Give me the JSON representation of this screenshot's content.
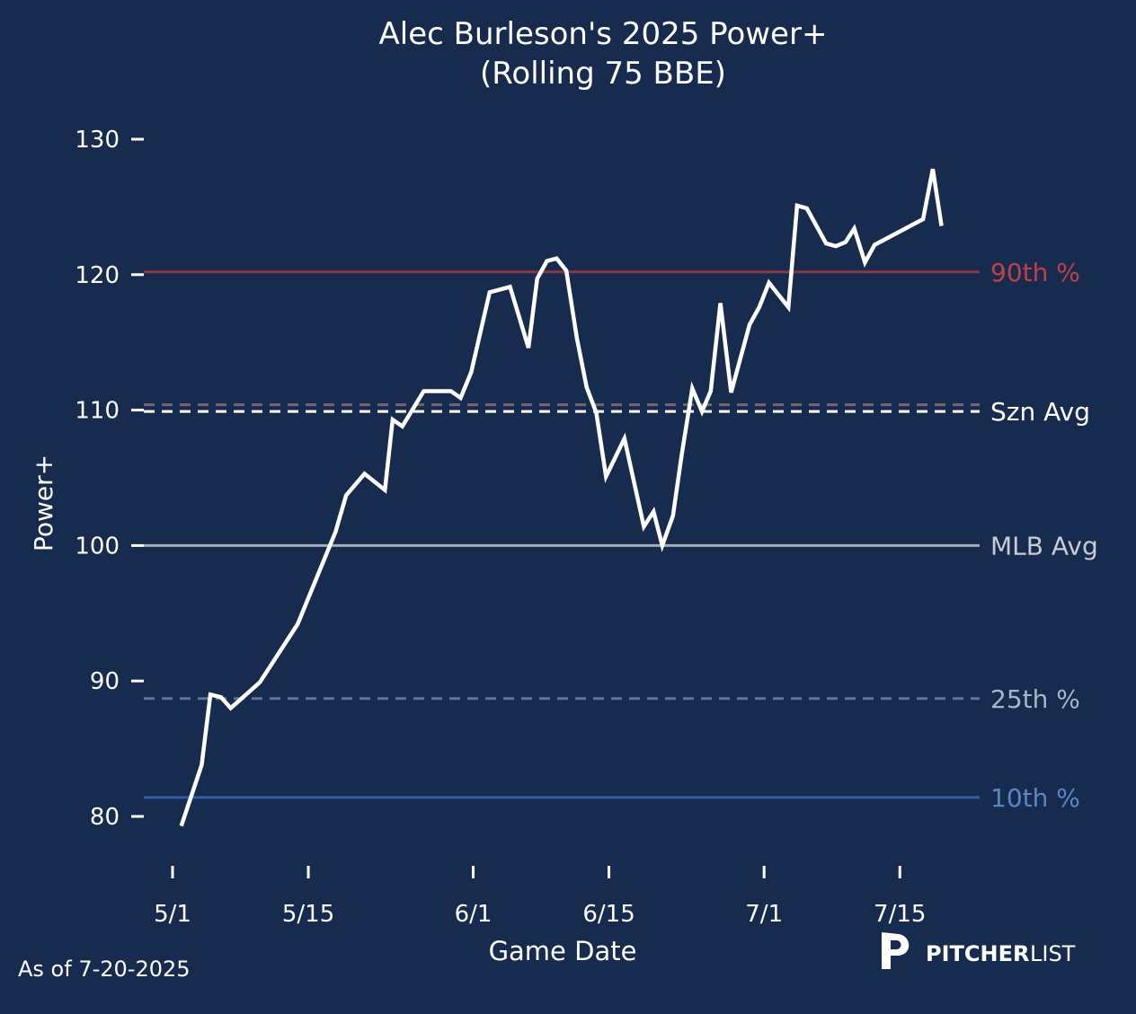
{
  "chart_data": {
    "type": "line",
    "title": "Alec Burleson's 2025 Power+",
    "subtitle": "(Rolling 75 BBE)",
    "xlabel": "Game Date",
    "ylabel": "Power+",
    "x_units": "days since 5/1",
    "xlim": [
      -3,
      83.2
    ],
    "ylim": [
      76.5,
      132
    ],
    "grid": false,
    "y_ticks": [
      80,
      90,
      100,
      110,
      120,
      130
    ],
    "x_ticks": [
      {
        "value": 0,
        "label": "5/1"
      },
      {
        "value": 14,
        "label": "5/15"
      },
      {
        "value": 31,
        "label": "6/1"
      },
      {
        "value": 45,
        "label": "6/15"
      },
      {
        "value": 61,
        "label": "7/1"
      },
      {
        "value": 75,
        "label": "7/15"
      }
    ],
    "series": [
      {
        "name": "Power+",
        "color": "#ffffff",
        "x": [
          0.9,
          3.0,
          3.9,
          5.0,
          6.0,
          9.0,
          12.9,
          16.8,
          17.9,
          19.8,
          21.9,
          22.7,
          23.7,
          25.9,
          28.7,
          29.7,
          30.8,
          32.7,
          34.8,
          36.7,
          37.6,
          38.6,
          39.6,
          40.6,
          41.7,
          42.7,
          43.7,
          44.7,
          46.6,
          48.6,
          49.6,
          50.5,
          51.6,
          52.5,
          53.6,
          54.6,
          55.5,
          56.5,
          57.6,
          59.5,
          60.5,
          61.5,
          63.5,
          64.4,
          65.4,
          67.4,
          68.4,
          69.4,
          70.3,
          71.4,
          72.4,
          77.4,
          78.4,
          79.3
        ],
        "y": [
          79.3,
          83.8,
          89.0,
          88.8,
          88.0,
          89.9,
          94.2,
          101.0,
          103.7,
          105.3,
          104.1,
          109.3,
          108.8,
          111.4,
          111.4,
          110.9,
          112.8,
          118.7,
          119.1,
          114.6,
          119.7,
          121.0,
          121.2,
          120.3,
          115.3,
          111.7,
          109.8,
          105.1,
          107.9,
          101.4,
          102.5,
          100.0,
          102.2,
          106.7,
          111.6,
          109.9,
          111.4,
          117.9,
          111.3,
          116.3,
          117.6,
          119.4,
          117.6,
          125.1,
          124.9,
          122.3,
          122.1,
          122.4,
          123.4,
          120.9,
          122.2,
          124.1,
          127.8,
          123.6
        ]
      }
    ],
    "reference_lines": [
      {
        "name": "90th %",
        "label": "90th %",
        "value": 120.2,
        "style": "solid",
        "color": "#8a3745",
        "text_color": "#c0404a"
      },
      {
        "name": "75th",
        "label": "",
        "value": 110.4,
        "style": "dashed",
        "color": "#7a6070",
        "text_color": ""
      },
      {
        "name": "Szn Avg",
        "label": "Szn Avg",
        "value": 109.9,
        "style": "dashed",
        "color": "#ffffff",
        "text_color": "#ffffff"
      },
      {
        "name": "MLB Avg",
        "label": "MLB Avg",
        "value": 100,
        "style": "solid",
        "color": "#a9adb8",
        "text_color": "#c8ccd4"
      },
      {
        "name": "25th %",
        "label": "25th %",
        "value": 88.7,
        "style": "dashed",
        "color": "#5f7596",
        "text_color": "#a8b4c8"
      },
      {
        "name": "10th %",
        "label": "10th %",
        "value": 81.4,
        "style": "solid",
        "color": "#2e5ca8",
        "text_color": "#5b86c4"
      }
    ]
  },
  "footer": {
    "as_of": "As of 7-20-2025",
    "logo_bold": "PITCHER",
    "logo_light": "LIST"
  },
  "colors": {
    "background": "#172b4f"
  }
}
